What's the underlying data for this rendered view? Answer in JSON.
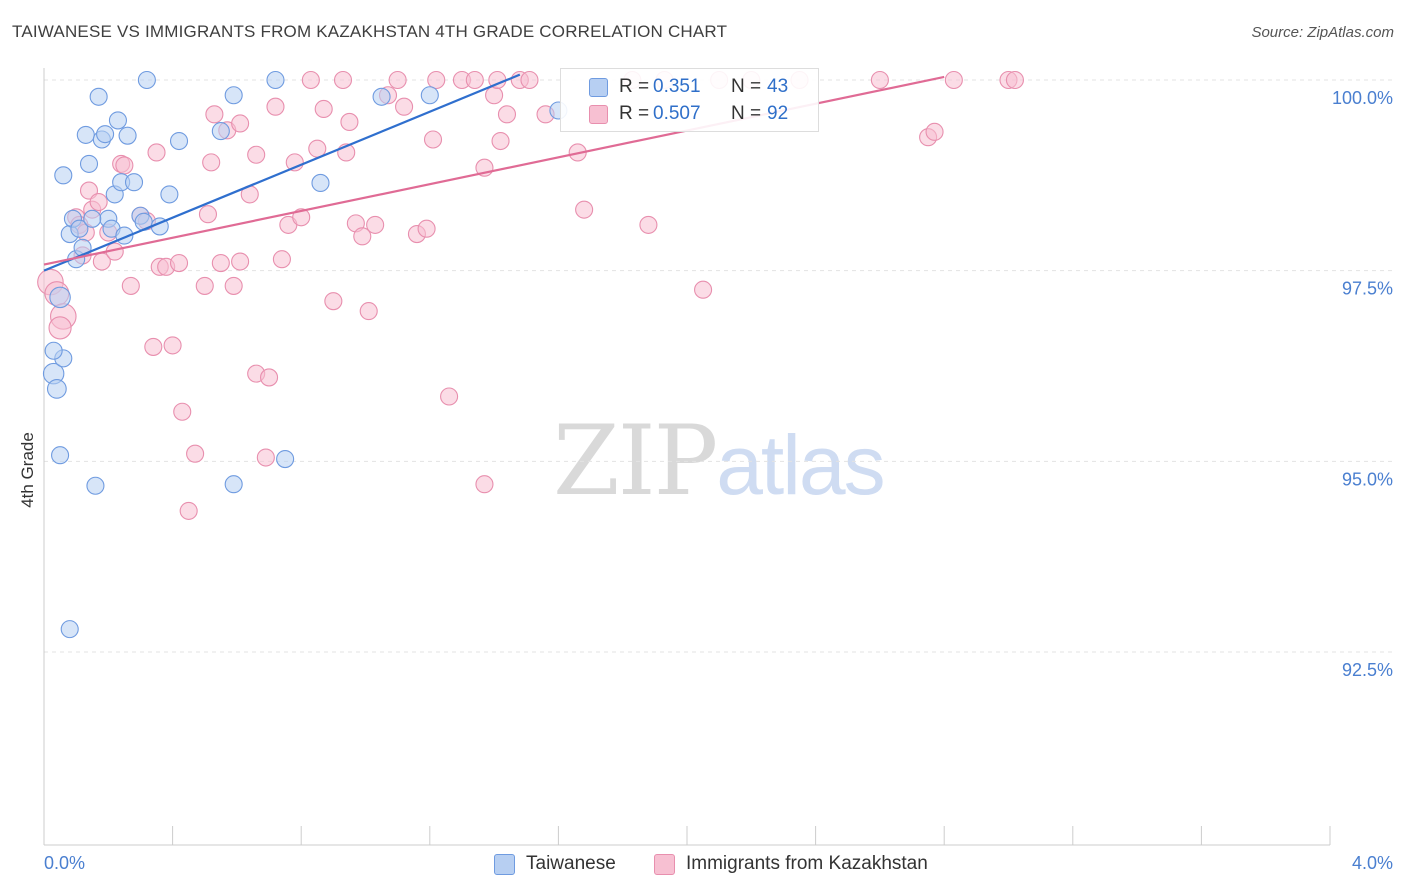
{
  "title": "TAIWANESE VS IMMIGRANTS FROM KAZAKHSTAN 4TH GRADE CORRELATION CHART",
  "source": "Source: ZipAtlas.com",
  "watermark": {
    "zip": "ZIP",
    "atlas": "atlas"
  },
  "legend": {
    "rows": [
      {
        "r_label": "R =",
        "r_value": "0.351",
        "n_label": "N =",
        "n_value": "43"
      },
      {
        "r_label": "R =",
        "r_value": "0.507",
        "n_label": "N =",
        "n_value": "92"
      }
    ]
  },
  "bottom_legend": {
    "items": [
      "Taiwanese",
      "Immigrants from Kazakhstan"
    ]
  },
  "colors": {
    "blue_fill": "#b7cff2",
    "blue_stroke": "#6f9be0",
    "blue_line": "#2f6fce",
    "pink_fill": "#f7c0d2",
    "pink_stroke": "#e88fae",
    "pink_line": "#e06b95",
    "grid": "#e3e3e3",
    "tick_text": "#4a7fd0"
  },
  "chart_data": {
    "type": "scatter",
    "title": "TAIWANESE VS IMMIGRANTS FROM KAZAKHSTAN 4TH GRADE CORRELATION CHART",
    "xlabel": "",
    "ylabel": "4th Grade",
    "xlim": [
      0,
      4.0
    ],
    "ylim": [
      90.0,
      100.2
    ],
    "x_tick_labels": [
      "0.0%",
      "4.0%"
    ],
    "y_ticks": [
      92.5,
      95.0,
      97.5,
      100.0
    ],
    "y_tick_labels": [
      "92.5%",
      "95.0%",
      "97.5%",
      "100.0%"
    ],
    "series": [
      {
        "name": "Taiwanese",
        "R": 0.351,
        "N": 43,
        "trend": {
          "x": [
            0.0,
            1.48
          ],
          "y": [
            97.5,
            100.07
          ]
        },
        "points": [
          {
            "x": 0.05,
            "y": 97.15,
            "s": 1.2
          },
          {
            "x": 0.03,
            "y": 96.15,
            "s": 1.2
          },
          {
            "x": 0.06,
            "y": 96.35,
            "s": 1
          },
          {
            "x": 0.03,
            "y": 96.45,
            "s": 1
          },
          {
            "x": 0.04,
            "y": 95.95,
            "s": 1.1
          },
          {
            "x": 0.05,
            "y": 95.08,
            "s": 1
          },
          {
            "x": 0.16,
            "y": 94.68,
            "s": 1
          },
          {
            "x": 0.08,
            "y": 92.8,
            "s": 1
          },
          {
            "x": 0.06,
            "y": 98.75,
            "s": 1
          },
          {
            "x": 0.08,
            "y": 97.98,
            "s": 1
          },
          {
            "x": 0.09,
            "y": 98.18,
            "s": 1
          },
          {
            "x": 0.1,
            "y": 97.65,
            "s": 1
          },
          {
            "x": 0.11,
            "y": 98.05,
            "s": 1
          },
          {
            "x": 0.12,
            "y": 97.8,
            "s": 1
          },
          {
            "x": 0.13,
            "y": 99.28,
            "s": 1
          },
          {
            "x": 0.14,
            "y": 98.9,
            "s": 1
          },
          {
            "x": 0.17,
            "y": 99.78,
            "s": 1
          },
          {
            "x": 0.18,
            "y": 99.22,
            "s": 1
          },
          {
            "x": 0.19,
            "y": 99.29,
            "s": 1
          },
          {
            "x": 0.2,
            "y": 98.18,
            "s": 1
          },
          {
            "x": 0.21,
            "y": 98.05,
            "s": 1
          },
          {
            "x": 0.22,
            "y": 98.5,
            "s": 1
          },
          {
            "x": 0.23,
            "y": 99.47,
            "s": 1
          },
          {
            "x": 0.24,
            "y": 98.66,
            "s": 1
          },
          {
            "x": 0.25,
            "y": 97.96,
            "s": 1
          },
          {
            "x": 0.26,
            "y": 99.27,
            "s": 1
          },
          {
            "x": 0.28,
            "y": 98.66,
            "s": 1
          },
          {
            "x": 0.3,
            "y": 98.22,
            "s": 1
          },
          {
            "x": 0.31,
            "y": 98.14,
            "s": 1
          },
          {
            "x": 0.32,
            "y": 100.0,
            "s": 1
          },
          {
            "x": 0.36,
            "y": 98.08,
            "s": 1
          },
          {
            "x": 0.39,
            "y": 98.5,
            "s": 1
          },
          {
            "x": 0.42,
            "y": 99.2,
            "s": 1
          },
          {
            "x": 0.55,
            "y": 99.33,
            "s": 1
          },
          {
            "x": 0.59,
            "y": 99.8,
            "s": 1
          },
          {
            "x": 0.59,
            "y": 94.7,
            "s": 1
          },
          {
            "x": 0.72,
            "y": 100.0,
            "s": 1
          },
          {
            "x": 0.75,
            "y": 95.03,
            "s": 1
          },
          {
            "x": 0.86,
            "y": 98.65,
            "s": 1
          },
          {
            "x": 1.05,
            "y": 99.78,
            "s": 1
          },
          {
            "x": 1.2,
            "y": 99.8,
            "s": 1
          },
          {
            "x": 1.6,
            "y": 99.6,
            "s": 1
          },
          {
            "x": 0.15,
            "y": 98.18,
            "s": 1
          }
        ]
      },
      {
        "name": "Immigrants from Kazakhstan",
        "R": 0.507,
        "N": 92,
        "trend": {
          "x": [
            0.0,
            2.8
          ],
          "y": [
            97.58,
            100.04
          ]
        },
        "points": [
          {
            "x": 0.02,
            "y": 97.35,
            "s": 1.5
          },
          {
            "x": 0.04,
            "y": 97.2,
            "s": 1.4
          },
          {
            "x": 0.06,
            "y": 96.9,
            "s": 1.5
          },
          {
            "x": 0.05,
            "y": 96.75,
            "s": 1.3
          },
          {
            "x": 0.1,
            "y": 98.2,
            "s": 1
          },
          {
            "x": 0.11,
            "y": 98.1,
            "s": 1
          },
          {
            "x": 0.12,
            "y": 97.7,
            "s": 1
          },
          {
            "x": 0.13,
            "y": 98.0,
            "s": 1
          },
          {
            "x": 0.14,
            "y": 98.55,
            "s": 1
          },
          {
            "x": 0.15,
            "y": 98.3,
            "s": 1
          },
          {
            "x": 0.17,
            "y": 98.4,
            "s": 1
          },
          {
            "x": 0.18,
            "y": 97.62,
            "s": 1
          },
          {
            "x": 0.2,
            "y": 98.0,
            "s": 1
          },
          {
            "x": 0.22,
            "y": 97.75,
            "s": 1
          },
          {
            "x": 0.24,
            "y": 98.9,
            "s": 1
          },
          {
            "x": 0.25,
            "y": 98.88,
            "s": 1
          },
          {
            "x": 0.27,
            "y": 97.3,
            "s": 1
          },
          {
            "x": 0.3,
            "y": 98.22,
            "s": 1
          },
          {
            "x": 0.32,
            "y": 98.15,
            "s": 1
          },
          {
            "x": 0.34,
            "y": 96.5,
            "s": 1
          },
          {
            "x": 0.35,
            "y": 99.05,
            "s": 1
          },
          {
            "x": 0.36,
            "y": 97.55,
            "s": 1
          },
          {
            "x": 0.38,
            "y": 97.55,
            "s": 1
          },
          {
            "x": 0.4,
            "y": 96.52,
            "s": 1
          },
          {
            "x": 0.42,
            "y": 97.6,
            "s": 1
          },
          {
            "x": 0.43,
            "y": 95.65,
            "s": 1
          },
          {
            "x": 0.45,
            "y": 94.35,
            "s": 1
          },
          {
            "x": 0.47,
            "y": 95.1,
            "s": 1
          },
          {
            "x": 0.5,
            "y": 97.3,
            "s": 1
          },
          {
            "x": 0.51,
            "y": 98.24,
            "s": 1
          },
          {
            "x": 0.52,
            "y": 98.92,
            "s": 1
          },
          {
            "x": 0.53,
            "y": 99.55,
            "s": 1
          },
          {
            "x": 0.55,
            "y": 97.6,
            "s": 1
          },
          {
            "x": 0.57,
            "y": 99.34,
            "s": 1
          },
          {
            "x": 0.59,
            "y": 97.3,
            "s": 1
          },
          {
            "x": 0.61,
            "y": 99.43,
            "s": 1
          },
          {
            "x": 0.61,
            "y": 97.62,
            "s": 1
          },
          {
            "x": 0.64,
            "y": 98.5,
            "s": 1
          },
          {
            "x": 0.66,
            "y": 99.02,
            "s": 1
          },
          {
            "x": 0.66,
            "y": 96.15,
            "s": 1
          },
          {
            "x": 0.69,
            "y": 95.05,
            "s": 1
          },
          {
            "x": 0.7,
            "y": 96.1,
            "s": 1
          },
          {
            "x": 0.72,
            "y": 99.65,
            "s": 1
          },
          {
            "x": 0.74,
            "y": 97.65,
            "s": 1
          },
          {
            "x": 0.76,
            "y": 98.1,
            "s": 1
          },
          {
            "x": 0.78,
            "y": 98.92,
            "s": 1
          },
          {
            "x": 0.8,
            "y": 98.2,
            "s": 1
          },
          {
            "x": 0.83,
            "y": 100.0,
            "s": 1
          },
          {
            "x": 0.85,
            "y": 99.1,
            "s": 1
          },
          {
            "x": 0.87,
            "y": 99.62,
            "s": 1
          },
          {
            "x": 0.9,
            "y": 97.1,
            "s": 1
          },
          {
            "x": 0.93,
            "y": 100.0,
            "s": 1
          },
          {
            "x": 0.94,
            "y": 99.05,
            "s": 1
          },
          {
            "x": 0.95,
            "y": 99.45,
            "s": 1
          },
          {
            "x": 0.97,
            "y": 98.12,
            "s": 1
          },
          {
            "x": 0.99,
            "y": 97.95,
            "s": 1
          },
          {
            "x": 1.01,
            "y": 96.97,
            "s": 1
          },
          {
            "x": 1.03,
            "y": 98.1,
            "s": 1
          },
          {
            "x": 1.07,
            "y": 99.8,
            "s": 1
          },
          {
            "x": 1.1,
            "y": 100.0,
            "s": 1
          },
          {
            "x": 1.12,
            "y": 99.65,
            "s": 1
          },
          {
            "x": 1.16,
            "y": 97.98,
            "s": 1
          },
          {
            "x": 1.19,
            "y": 98.05,
            "s": 1
          },
          {
            "x": 1.21,
            "y": 99.22,
            "s": 1
          },
          {
            "x": 1.22,
            "y": 100.0,
            "s": 1
          },
          {
            "x": 1.26,
            "y": 95.85,
            "s": 1
          },
          {
            "x": 1.3,
            "y": 100.0,
            "s": 1
          },
          {
            "x": 1.34,
            "y": 100.0,
            "s": 1
          },
          {
            "x": 1.37,
            "y": 98.85,
            "s": 1
          },
          {
            "x": 1.37,
            "y": 94.7,
            "s": 1
          },
          {
            "x": 1.4,
            "y": 99.8,
            "s": 1
          },
          {
            "x": 1.41,
            "y": 100.0,
            "s": 1
          },
          {
            "x": 1.42,
            "y": 99.2,
            "s": 1
          },
          {
            "x": 1.44,
            "y": 99.55,
            "s": 1
          },
          {
            "x": 1.48,
            "y": 100.0,
            "s": 1
          },
          {
            "x": 1.51,
            "y": 100.0,
            "s": 1
          },
          {
            "x": 1.56,
            "y": 99.55,
            "s": 1
          },
          {
            "x": 1.66,
            "y": 99.05,
            "s": 1
          },
          {
            "x": 1.68,
            "y": 98.3,
            "s": 1
          },
          {
            "x": 1.83,
            "y": 100.0,
            "s": 1
          },
          {
            "x": 1.88,
            "y": 98.1,
            "s": 1
          },
          {
            "x": 1.93,
            "y": 100.0,
            "s": 1
          },
          {
            "x": 2.05,
            "y": 97.25,
            "s": 1
          },
          {
            "x": 2.1,
            "y": 100.0,
            "s": 1
          },
          {
            "x": 2.2,
            "y": 100.0,
            "s": 1
          },
          {
            "x": 2.35,
            "y": 100.0,
            "s": 1
          },
          {
            "x": 2.6,
            "y": 100.0,
            "s": 1
          },
          {
            "x": 2.75,
            "y": 99.25,
            "s": 1
          },
          {
            "x": 2.77,
            "y": 99.32,
            "s": 1
          },
          {
            "x": 2.83,
            "y": 100.0,
            "s": 1
          },
          {
            "x": 3.0,
            "y": 100.0,
            "s": 1
          },
          {
            "x": 3.02,
            "y": 100.0,
            "s": 1
          }
        ]
      }
    ]
  }
}
